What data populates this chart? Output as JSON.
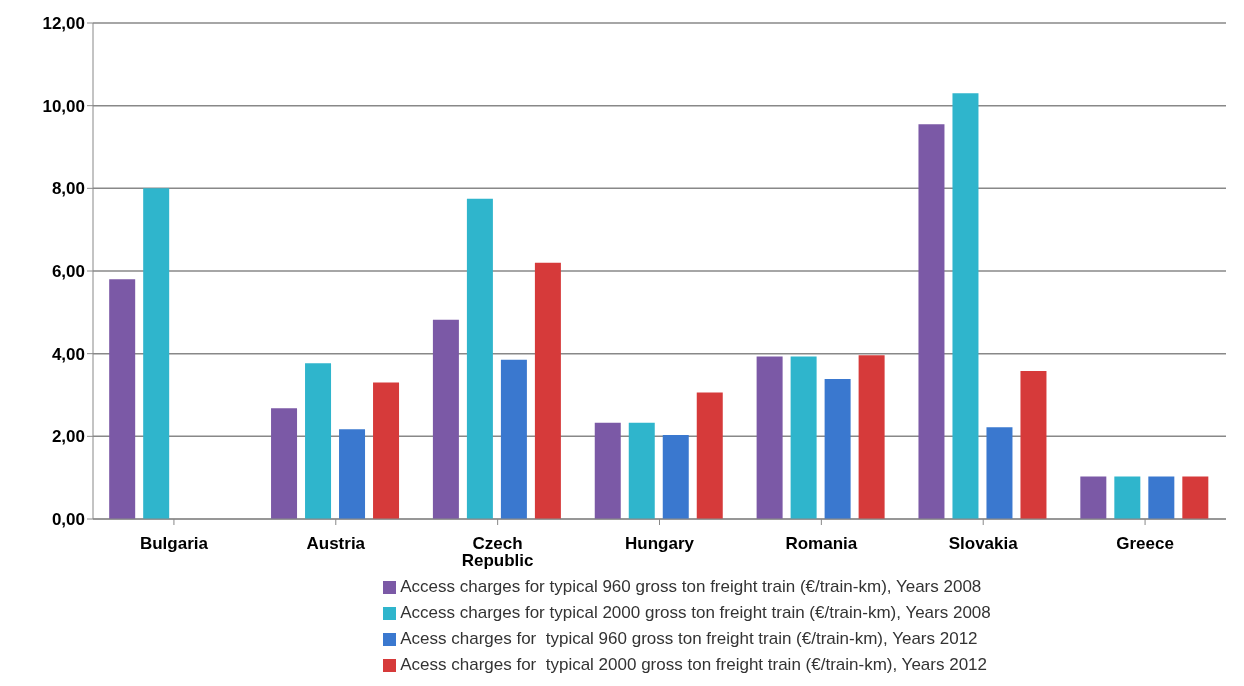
{
  "chart_data": {
    "type": "bar",
    "categories": [
      "Bulgaria",
      "Austria",
      "Czech Republic",
      "Hungary",
      "Romania",
      "Slovakia",
      "Greece"
    ],
    "series": [
      {
        "name": "Access charges for typical 960 gross ton freight train (€/train-km), Years 2008",
        "color": "#7b59a6",
        "values": [
          5.8,
          2.68,
          4.82,
          2.33,
          3.93,
          9.55,
          1.03
        ]
      },
      {
        "name": "Access charges for typical 2000 gross ton freight train (€/train-km), Years 2008",
        "color": "#2fb5cc",
        "values": [
          8.0,
          3.77,
          7.75,
          2.33,
          3.93,
          10.3,
          1.03
        ]
      },
      {
        "name": "Acess charges for  typical 960 gross ton freight train (€/train-km), Years 2012",
        "color": "#3a78cf",
        "values": [
          null,
          2.17,
          3.85,
          2.03,
          3.39,
          2.22,
          1.03
        ]
      },
      {
        "name": "Acess charges for  typical 2000 gross ton freight train (€/train-km), Years 2012",
        "color": "#d63a3a",
        "values": [
          null,
          3.3,
          6.2,
          3.06,
          3.96,
          3.58,
          1.03
        ]
      }
    ],
    "ylim": [
      0,
      12
    ],
    "yticks": [
      {
        "value": 0,
        "label": "0,00"
      },
      {
        "value": 2,
        "label": "2,00"
      },
      {
        "value": 4,
        "label": "4,00"
      },
      {
        "value": 6,
        "label": "6,00"
      },
      {
        "value": 8,
        "label": "8,00"
      },
      {
        "value": 10,
        "label": "10,00"
      },
      {
        "value": 12,
        "label": "12,00"
      }
    ],
    "grid": "y",
    "legend": "bottom"
  }
}
